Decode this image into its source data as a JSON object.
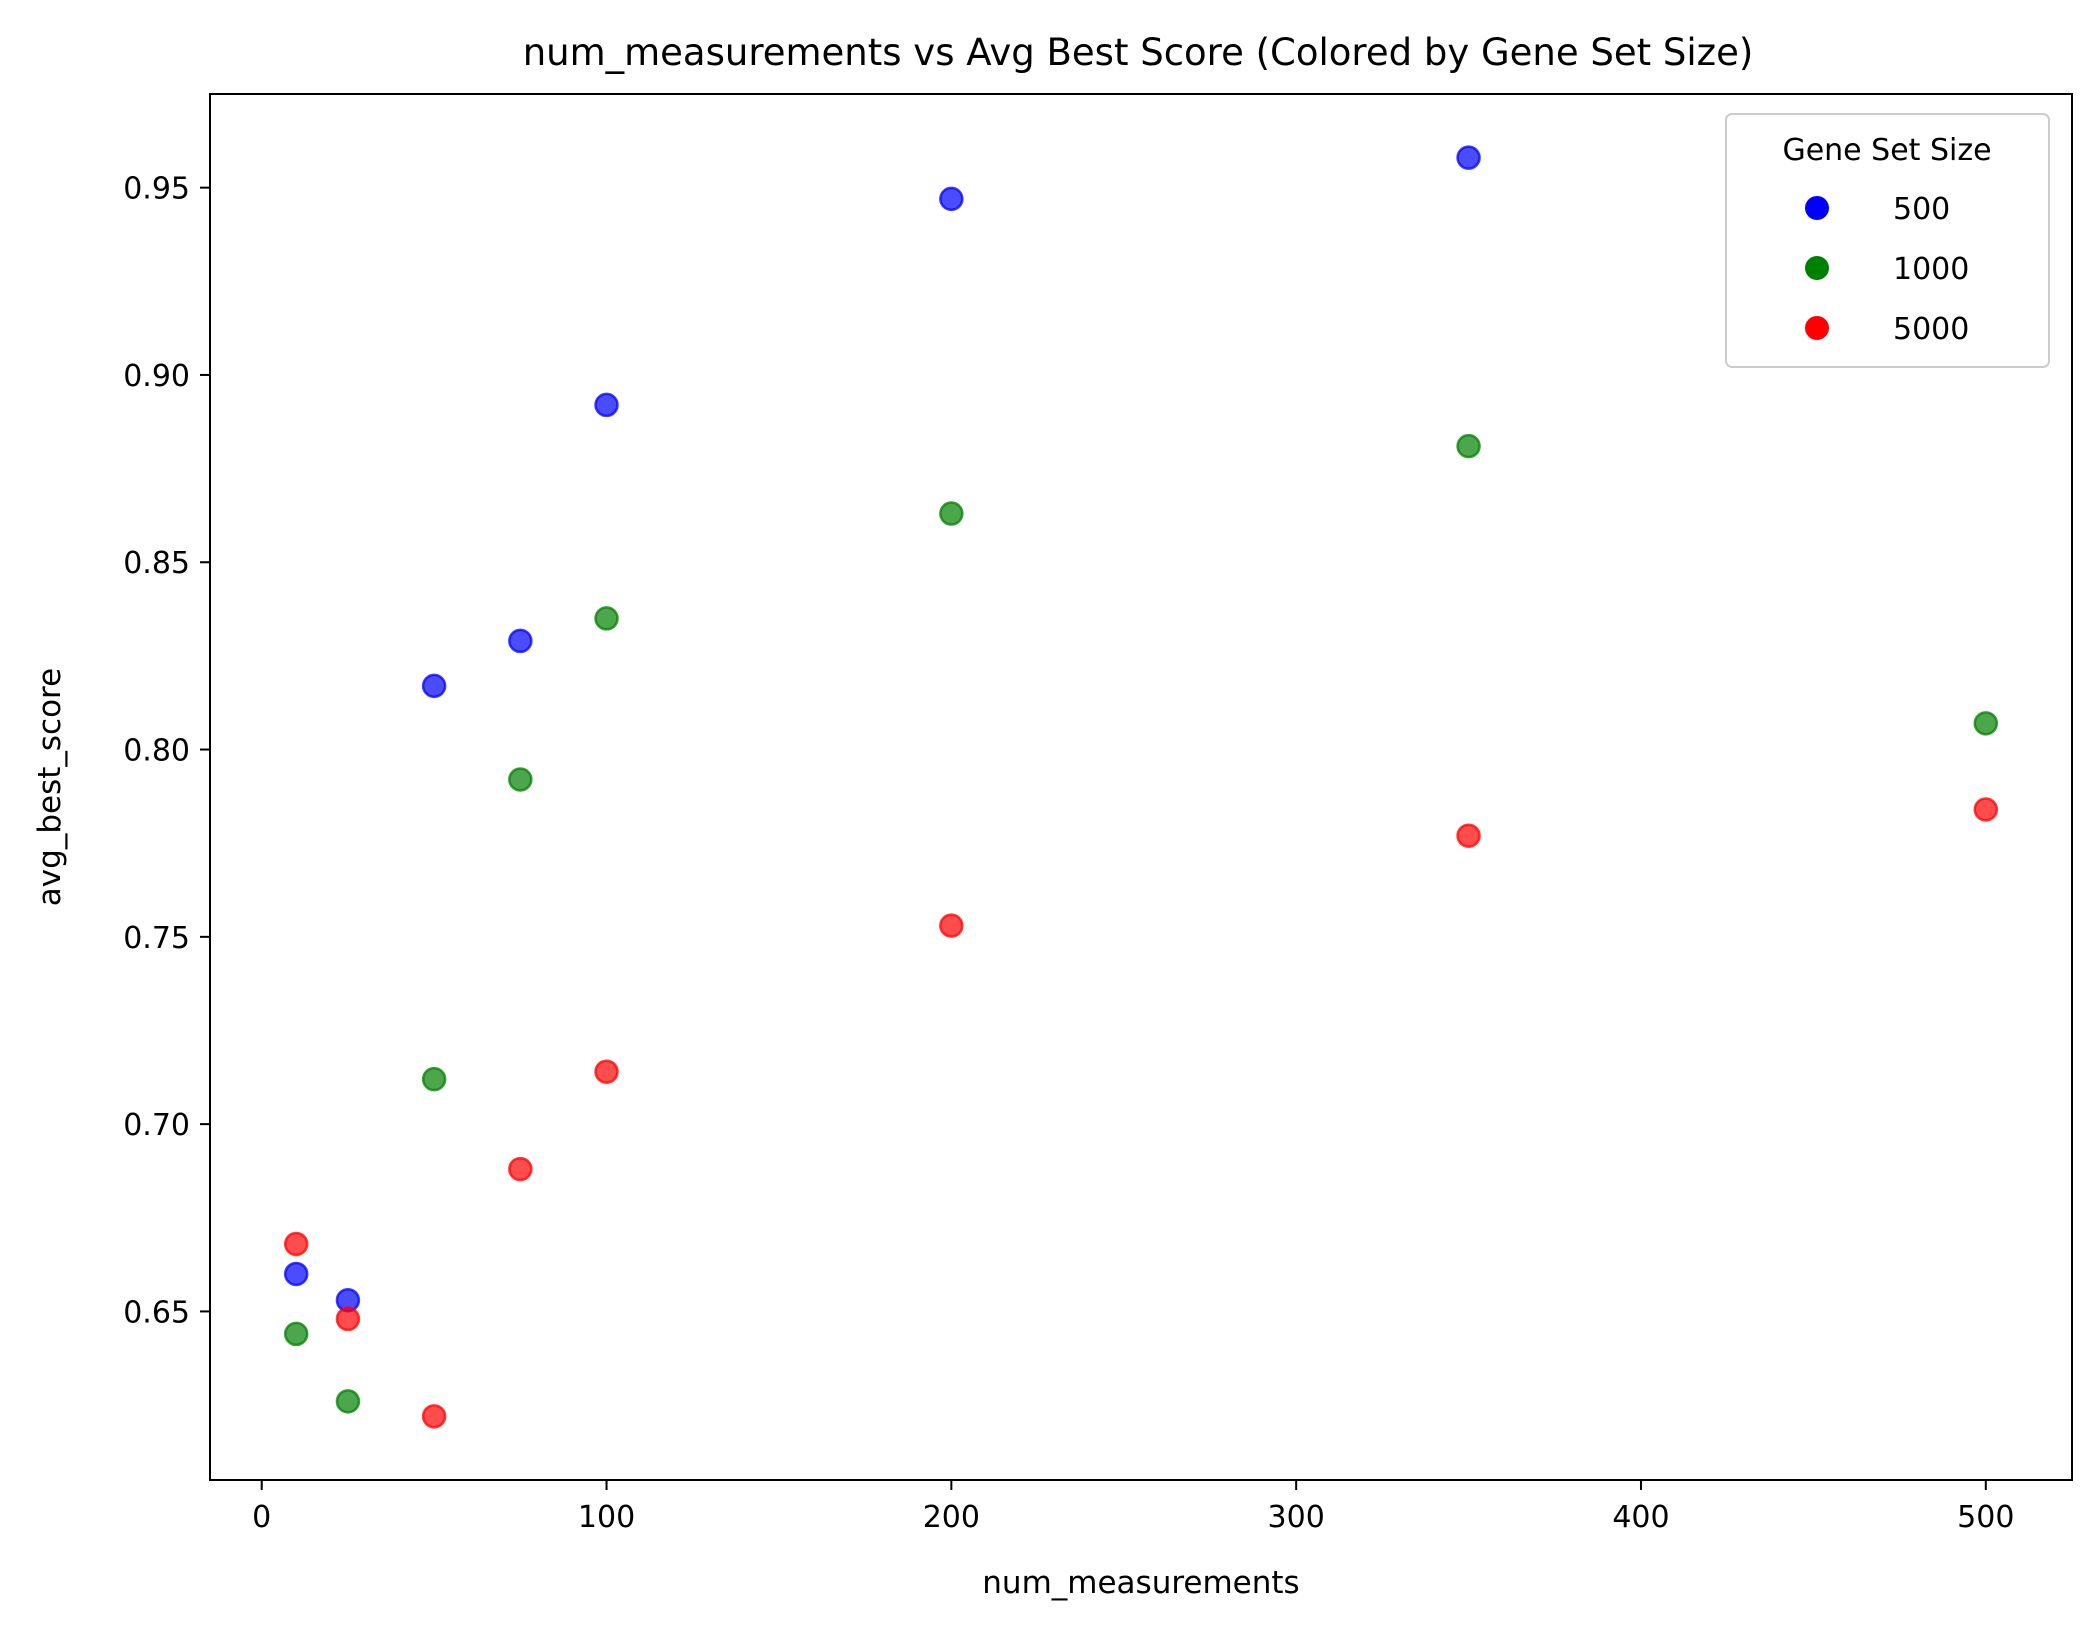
{
  "chart_data": {
    "type": "scatter",
    "title": "num_measurements vs Avg Best Score (Colored by Gene Set Size)",
    "xlabel": "num_measurements",
    "ylabel": "avg_best_score",
    "xlim": [
      -15,
      525
    ],
    "ylim": [
      0.605,
      0.975
    ],
    "xticks": [
      0,
      100,
      200,
      300,
      400,
      500
    ],
    "yticks": [
      0.65,
      0.7,
      0.75,
      0.8,
      0.85,
      0.9,
      0.95
    ],
    "ytick_labels": [
      "0.65",
      "0.70",
      "0.75",
      "0.80",
      "0.85",
      "0.90",
      "0.95"
    ],
    "grid": false,
    "legend": {
      "title": "Gene Set Size",
      "placement": "top-right"
    },
    "series": [
      {
        "name": "500",
        "color": "#0000ff",
        "points": [
          {
            "x": 10,
            "y": 0.66
          },
          {
            "x": 25,
            "y": 0.653
          },
          {
            "x": 50,
            "y": 0.817
          },
          {
            "x": 75,
            "y": 0.829
          },
          {
            "x": 100,
            "y": 0.892
          },
          {
            "x": 200,
            "y": 0.947
          },
          {
            "x": 350,
            "y": 0.958
          }
        ]
      },
      {
        "name": "1000",
        "color": "#008000",
        "points": [
          {
            "x": 10,
            "y": 0.644
          },
          {
            "x": 25,
            "y": 0.626
          },
          {
            "x": 50,
            "y": 0.712
          },
          {
            "x": 75,
            "y": 0.792
          },
          {
            "x": 100,
            "y": 0.835
          },
          {
            "x": 200,
            "y": 0.863
          },
          {
            "x": 350,
            "y": 0.881
          },
          {
            "x": 500,
            "y": 0.807
          }
        ]
      },
      {
        "name": "5000",
        "color": "#ff0000",
        "points": [
          {
            "x": 10,
            "y": 0.668
          },
          {
            "x": 25,
            "y": 0.648
          },
          {
            "x": 50,
            "y": 0.622
          },
          {
            "x": 75,
            "y": 0.688
          },
          {
            "x": 100,
            "y": 0.714
          },
          {
            "x": 200,
            "y": 0.753
          },
          {
            "x": 350,
            "y": 0.777
          },
          {
            "x": 500,
            "y": 0.784
          }
        ]
      }
    ]
  }
}
